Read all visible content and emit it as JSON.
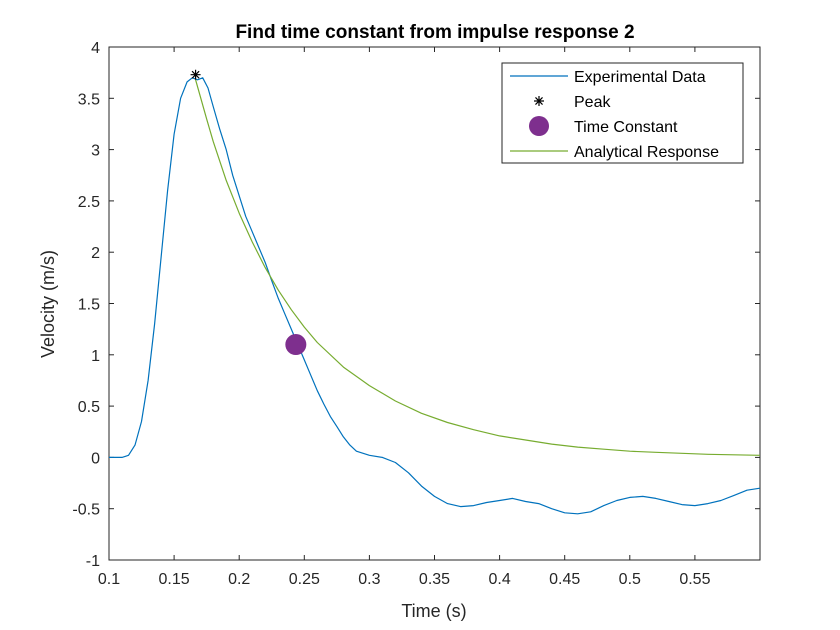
{
  "chart_data": {
    "type": "line",
    "title": "Find time constant from impulse response 2",
    "xlabel": "Time (s)",
    "ylabel": "Velocity (m/s)",
    "xlim": [
      0.1,
      0.6
    ],
    "ylim": [
      -1,
      4
    ],
    "xticks": [
      0.1,
      0.15,
      0.2,
      0.25,
      0.3,
      0.35,
      0.4,
      0.45,
      0.5,
      0.55
    ],
    "xtick_labels": [
      "0.1",
      "0.15",
      "0.2",
      "0.25",
      "0.3",
      "0.35",
      "0.4",
      "0.45",
      "0.5",
      "0.55"
    ],
    "yticks": [
      -1,
      -0.5,
      0,
      0.5,
      1,
      1.5,
      2,
      2.5,
      3,
      3.5,
      4
    ],
    "ytick_labels": [
      "-1",
      "-0.5",
      "0",
      "0.5",
      "1",
      "1.5",
      "2",
      "2.5",
      "3",
      "3.5",
      "4"
    ],
    "grid": false,
    "legend_position": "top-right",
    "series": [
      {
        "name": "Experimental Data",
        "style": "line",
        "color": "#0072BD",
        "x": [
          0.1,
          0.11,
          0.115,
          0.12,
          0.125,
          0.13,
          0.135,
          0.14,
          0.145,
          0.15,
          0.155,
          0.16,
          0.164,
          0.168,
          0.172,
          0.176,
          0.18,
          0.185,
          0.19,
          0.195,
          0.2,
          0.205,
          0.21,
          0.215,
          0.22,
          0.225,
          0.23,
          0.235,
          0.24,
          0.245,
          0.25,
          0.255,
          0.26,
          0.265,
          0.27,
          0.275,
          0.28,
          0.285,
          0.29,
          0.3,
          0.31,
          0.32,
          0.33,
          0.34,
          0.35,
          0.36,
          0.37,
          0.38,
          0.39,
          0.4,
          0.41,
          0.42,
          0.43,
          0.44,
          0.45,
          0.46,
          0.47,
          0.48,
          0.49,
          0.5,
          0.51,
          0.52,
          0.53,
          0.54,
          0.55,
          0.56,
          0.57,
          0.58,
          0.59,
          0.6
        ],
        "y": [
          0.0,
          0.0,
          0.02,
          0.12,
          0.35,
          0.75,
          1.3,
          1.95,
          2.6,
          3.15,
          3.5,
          3.66,
          3.7,
          3.68,
          3.7,
          3.6,
          3.42,
          3.2,
          3.0,
          2.75,
          2.55,
          2.35,
          2.2,
          2.05,
          1.9,
          1.72,
          1.55,
          1.4,
          1.25,
          1.1,
          0.95,
          0.8,
          0.65,
          0.52,
          0.4,
          0.3,
          0.2,
          0.12,
          0.06,
          0.02,
          0.0,
          -0.05,
          -0.15,
          -0.28,
          -0.38,
          -0.45,
          -0.48,
          -0.47,
          -0.44,
          -0.42,
          -0.4,
          -0.43,
          -0.45,
          -0.5,
          -0.54,
          -0.55,
          -0.53,
          -0.47,
          -0.42,
          -0.39,
          -0.38,
          -0.4,
          -0.43,
          -0.46,
          -0.47,
          -0.45,
          -0.42,
          -0.37,
          -0.32,
          -0.3
        ]
      },
      {
        "name": "Peak",
        "style": "marker-star",
        "color": "#000000",
        "x": [
          0.1665
        ],
        "y": [
          3.73
        ]
      },
      {
        "name": "Time Constant",
        "style": "marker-dot",
        "color": "#7E2F8E",
        "x": [
          0.2435
        ],
        "y": [
          1.1
        ]
      },
      {
        "name": "Analytical Response",
        "style": "line",
        "color": "#77AC30",
        "x": [
          0.1665,
          0.175,
          0.18,
          0.19,
          0.2,
          0.21,
          0.22,
          0.23,
          0.24,
          0.25,
          0.26,
          0.28,
          0.3,
          0.32,
          0.34,
          0.36,
          0.38,
          0.4,
          0.42,
          0.44,
          0.46,
          0.48,
          0.5,
          0.52,
          0.54,
          0.56,
          0.58,
          0.6
        ],
        "y": [
          3.68,
          3.3,
          3.08,
          2.7,
          2.38,
          2.1,
          1.85,
          1.63,
          1.44,
          1.27,
          1.12,
          0.88,
          0.7,
          0.55,
          0.43,
          0.34,
          0.27,
          0.21,
          0.17,
          0.13,
          0.1,
          0.08,
          0.06,
          0.05,
          0.04,
          0.03,
          0.025,
          0.02
        ]
      }
    ]
  }
}
